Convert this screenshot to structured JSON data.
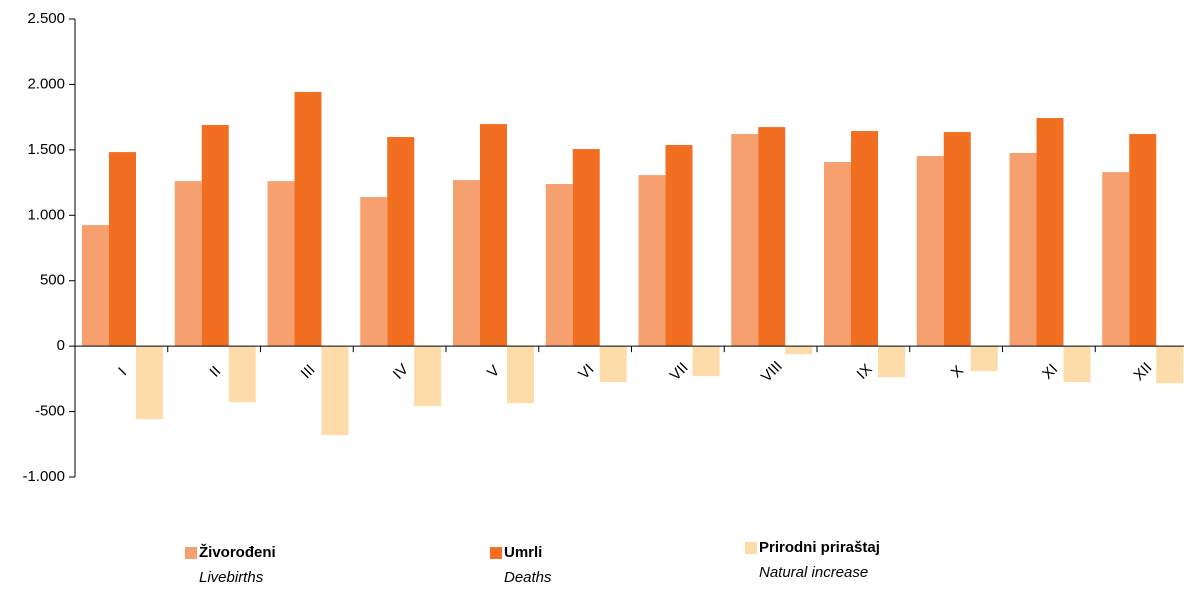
{
  "chart_data": {
    "type": "bar",
    "categories": [
      "I",
      "II",
      "III",
      "IV",
      "V",
      "VI",
      "VII",
      "VIII",
      "IX",
      "X",
      "XI",
      "XII"
    ],
    "series": [
      {
        "name": "Živorođeni",
        "name_en": "Livebirths",
        "color": "#f5a06e",
        "values": [
          925,
          1261,
          1261,
          1139,
          1269,
          1239,
          1307,
          1621,
          1407,
          1453,
          1476,
          1330
        ]
      },
      {
        "name": "Umrli",
        "name_en": "Deaths",
        "color": "#f26f22",
        "values": [
          1483,
          1690,
          1942,
          1598,
          1697,
          1506,
          1537,
          1674,
          1644,
          1636,
          1743,
          1621
        ]
      },
      {
        "name": "Prirodni priraštaj",
        "name_en": "Natural increase",
        "color": "#fddcaa",
        "values": [
          -558,
          -428,
          -680,
          -459,
          -436,
          -275,
          -229,
          -61,
          -237,
          -191,
          -275,
          -283
        ]
      }
    ],
    "ylim": [
      -1000,
      2500
    ],
    "yticks": [
      {
        "value": -1000,
        "label": "-1.000"
      },
      -500,
      0,
      500,
      {
        "value": 1000,
        "label": "1.000"
      },
      {
        "value": 1500,
        "label": "1.500"
      },
      {
        "value": 2000,
        "label": "2.000"
      },
      {
        "value": 2500,
        "label": "2.500"
      }
    ],
    "legend": "bottom"
  }
}
